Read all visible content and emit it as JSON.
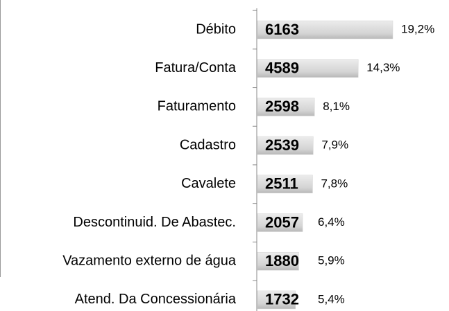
{
  "chart_data": {
    "type": "bar",
    "orientation": "horizontal",
    "categories": [
      "Débito",
      "Fatura/Conta",
      "Faturamento",
      "Cadastro",
      "Cavalete",
      "Descontinuid. De Abastec.",
      "Vazamento externo de água",
      "Atend. Da Concessionária"
    ],
    "values": [
      6163,
      4589,
      2598,
      2539,
      2511,
      2057,
      1880,
      1732
    ],
    "percent_labels": [
      "19,2%",
      "14,3%",
      "8,1%",
      "7,9%",
      "7,8%",
      "6,4%",
      "5,9%",
      "5,4%"
    ],
    "color": "#d4d4d4"
  }
}
